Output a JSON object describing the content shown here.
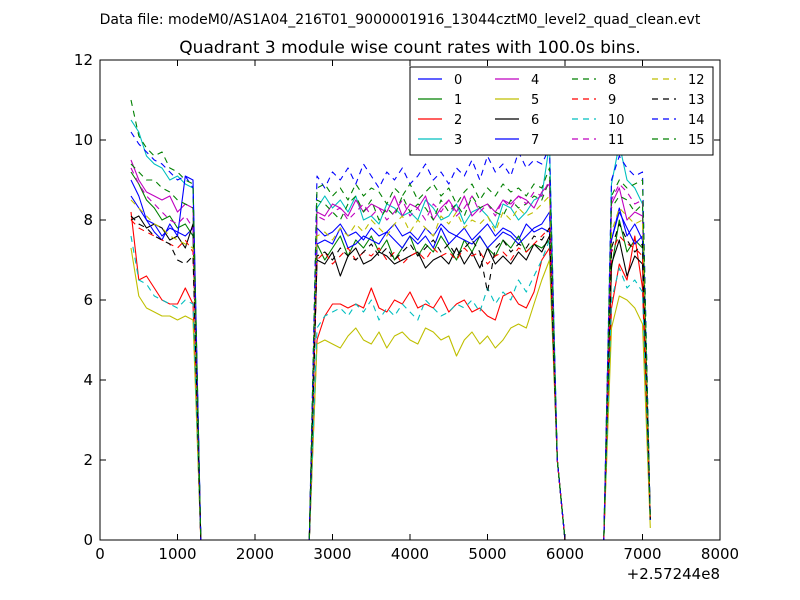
{
  "figure": {
    "suptitle": "Data file: modeM0/AS1A04_216T01_9000001916_13044cztM0_level2_quad_clean.evt",
    "x_offset_label": "+2.57244e8"
  },
  "chart_data": {
    "type": "line",
    "title": "Quadrant 3 module wise count rates with 100.0s bins.",
    "xlabel": "",
    "ylabel": "",
    "xlim": [
      0,
      8000
    ],
    "ylim": [
      0,
      12
    ],
    "x_ticks": [
      "0",
      "1000",
      "2000",
      "3000",
      "4000",
      "5000",
      "6000",
      "7000",
      "8000"
    ],
    "y_ticks": [
      "0",
      "2",
      "4",
      "6",
      "8",
      "10",
      "12"
    ],
    "legend_position": "top-right",
    "x": [
      400,
      500,
      600,
      700,
      800,
      900,
      1000,
      1100,
      1200,
      1300,
      2700,
      2800,
      2900,
      3000,
      3100,
      3200,
      3300,
      3400,
      3500,
      3600,
      3700,
      3800,
      3900,
      4000,
      4100,
      4200,
      4300,
      4400,
      4500,
      4600,
      4700,
      4800,
      4900,
      5000,
      5100,
      5200,
      5300,
      5400,
      5500,
      5600,
      5700,
      5800,
      5900,
      6000,
      6500,
      6600,
      6700,
      6800,
      6900,
      7000,
      7100
    ],
    "gap_zero_segments": [
      [
        1320,
        2700
      ],
      [
        6000,
        6500
      ]
    ],
    "series": [
      {
        "name": "0",
        "color": "#0000ff",
        "dash": "solid",
        "values": [
          9.0,
          8.6,
          8.0,
          7.9,
          7.6,
          7.8,
          7.7,
          7.6,
          7.8,
          0.0,
          0.0,
          7.8,
          7.6,
          7.7,
          7.9,
          7.6,
          7.7,
          7.5,
          7.8,
          7.6,
          7.7,
          7.9,
          7.6,
          7.7,
          7.5,
          7.8,
          7.6,
          7.9,
          7.7,
          7.6,
          7.8,
          7.5,
          7.7,
          7.9,
          7.6,
          7.8,
          7.7,
          7.5,
          7.9,
          7.7,
          7.8,
          7.7,
          2.0,
          0.0,
          0.0,
          7.5,
          8.3,
          7.6,
          7.9,
          7.5,
          0.5
        ]
      },
      {
        "name": "1",
        "color": "#008000",
        "dash": "solid",
        "values": [
          9.2,
          8.9,
          8.5,
          8.3,
          8.0,
          8.1,
          7.8,
          7.9,
          7.6,
          0.0,
          0.0,
          7.4,
          7.0,
          7.3,
          7.6,
          7.1,
          7.5,
          7.3,
          7.6,
          7.2,
          7.5,
          7.0,
          7.3,
          7.6,
          7.1,
          7.4,
          7.2,
          7.6,
          7.3,
          7.0,
          7.5,
          7.2,
          7.6,
          7.3,
          7.1,
          7.5,
          7.3,
          7.6,
          7.2,
          7.4,
          7.3,
          7.5,
          2.0,
          0.0,
          0.0,
          6.8,
          8.0,
          7.2,
          7.5,
          7.3,
          0.5
        ]
      },
      {
        "name": "2",
        "color": "#ff0000",
        "dash": "solid",
        "values": [
          8.2,
          6.5,
          6.6,
          6.3,
          6.0,
          5.9,
          5.9,
          6.3,
          5.9,
          0.0,
          0.0,
          5.0,
          5.6,
          5.9,
          5.9,
          5.8,
          5.9,
          5.8,
          6.3,
          5.8,
          5.7,
          6.0,
          5.9,
          6.2,
          5.8,
          5.9,
          5.8,
          6.1,
          5.7,
          5.9,
          6.0,
          5.7,
          5.8,
          5.6,
          5.5,
          6.1,
          6.2,
          5.9,
          5.8,
          6.2,
          7.0,
          7.3,
          2.0,
          0.0,
          0.0,
          5.8,
          6.9,
          6.5,
          7.6,
          6.3,
          0.5
        ]
      },
      {
        "name": "3",
        "color": "#00bfbf",
        "dash": "solid",
        "values": [
          10.5,
          10.2,
          9.6,
          9.4,
          9.3,
          9.0,
          9.1,
          8.9,
          8.8,
          0.0,
          0.0,
          8.3,
          8.6,
          8.3,
          8.5,
          8.2,
          8.6,
          8.0,
          8.1,
          7.9,
          8.4,
          8.3,
          8.1,
          8.2,
          8.0,
          8.5,
          8.3,
          8.0,
          8.1,
          8.4,
          7.9,
          8.2,
          8.3,
          8.1,
          7.8,
          8.4,
          8.3,
          8.0,
          8.2,
          8.5,
          8.6,
          9.9,
          2.0,
          0.0,
          0.0,
          8.9,
          9.9,
          9.0,
          8.8,
          8.4,
          0.5
        ]
      },
      {
        "name": "4",
        "color": "#bf00bf",
        "dash": "solid",
        "values": [
          9.5,
          9.0,
          8.7,
          8.6,
          8.5,
          8.6,
          8.2,
          8.4,
          8.3,
          0.0,
          0.0,
          8.2,
          8.1,
          8.4,
          8.3,
          8.1,
          8.5,
          8.2,
          8.4,
          8.3,
          8.2,
          8.6,
          8.1,
          8.4,
          8.3,
          8.6,
          8.0,
          8.3,
          8.5,
          8.2,
          8.6,
          8.1,
          8.3,
          8.4,
          8.2,
          8.5,
          8.4,
          8.6,
          8.5,
          8.3,
          8.7,
          8.9,
          2.0,
          0.0,
          0.0,
          8.4,
          8.8,
          8.0,
          8.2,
          8.1,
          0.5
        ]
      },
      {
        "name": "5",
        "color": "#bfbf00",
        "dash": "solid",
        "values": [
          7.3,
          6.1,
          5.8,
          5.7,
          5.6,
          5.6,
          5.5,
          5.6,
          5.5,
          0.0,
          0.0,
          4.9,
          5.0,
          4.9,
          4.8,
          5.1,
          5.3,
          5.0,
          4.9,
          5.2,
          4.8,
          5.1,
          5.2,
          5.0,
          4.9,
          5.3,
          5.2,
          5.0,
          5.1,
          4.6,
          5.0,
          5.2,
          4.9,
          5.1,
          4.8,
          5.0,
          5.3,
          5.4,
          5.3,
          5.9,
          6.5,
          7.0,
          2.0,
          0.0,
          0.0,
          5.3,
          6.1,
          6.0,
          5.8,
          5.4,
          0.3
        ]
      },
      {
        "name": "6",
        "color": "#000000",
        "dash": "solid",
        "values": [
          8.0,
          8.1,
          7.8,
          7.9,
          7.8,
          7.5,
          7.6,
          7.3,
          7.9,
          0.0,
          0.0,
          7.0,
          6.9,
          7.2,
          6.6,
          7.1,
          7.3,
          6.9,
          7.0,
          7.2,
          7.1,
          6.9,
          7.0,
          7.1,
          7.2,
          6.8,
          7.0,
          7.1,
          6.9,
          7.3,
          6.9,
          7.2,
          6.8,
          7.3,
          6.9,
          7.1,
          6.9,
          7.2,
          7.0,
          7.4,
          7.2,
          7.6,
          2.0,
          0.0,
          0.0,
          6.9,
          7.5,
          6.6,
          7.1,
          6.9,
          0.5
        ]
      },
      {
        "name": "7",
        "color": "#0000ff",
        "dash": "solid",
        "values": [
          8.6,
          8.3,
          8.0,
          7.7,
          7.5,
          7.9,
          7.6,
          9.1,
          9.0,
          0.0,
          0.0,
          7.4,
          7.5,
          7.4,
          7.8,
          7.3,
          7.4,
          7.6,
          7.5,
          7.4,
          7.7,
          7.5,
          7.3,
          7.6,
          7.4,
          7.6,
          7.3,
          7.8,
          7.4,
          7.6,
          7.5,
          7.4,
          7.6,
          7.3,
          7.5,
          7.7,
          7.6,
          7.4,
          7.6,
          7.8,
          7.9,
          8.2,
          2.0,
          0.0,
          0.0,
          7.5,
          8.2,
          7.8,
          7.4,
          7.6,
          0.5
        ]
      },
      {
        "name": "8",
        "color": "#008000",
        "dash": "dashed",
        "values": [
          9.4,
          9.2,
          9.0,
          9.0,
          8.8,
          8.7,
          8.5,
          8.4,
          8.3,
          0.0,
          0.0,
          8.5,
          8.4,
          8.2,
          8.0,
          8.4,
          8.6,
          8.2,
          8.5,
          8.0,
          8.3,
          8.1,
          8.6,
          8.2,
          8.4,
          8.3,
          8.0,
          8.5,
          8.2,
          8.4,
          8.1,
          8.6,
          8.3,
          8.4,
          8.2,
          8.1,
          8.5,
          8.3,
          8.4,
          8.6,
          8.5,
          9.0,
          2.0,
          0.0,
          0.0,
          8.3,
          8.6,
          8.5,
          8.2,
          8.4,
          0.5
        ]
      },
      {
        "name": "9",
        "color": "#ff0000",
        "dash": "dashed",
        "values": [
          8.0,
          7.8,
          7.7,
          7.6,
          7.5,
          7.4,
          7.3,
          7.5,
          7.2,
          0.0,
          0.0,
          7.0,
          7.2,
          6.9,
          7.1,
          7.3,
          7.0,
          7.2,
          7.1,
          7.3,
          7.0,
          7.2,
          6.9,
          7.1,
          7.2,
          7.0,
          7.3,
          7.1,
          7.2,
          7.0,
          7.3,
          7.1,
          7.2,
          6.9,
          7.1,
          7.2,
          7.0,
          7.3,
          7.2,
          7.4,
          7.6,
          7.8,
          2.0,
          0.0,
          0.0,
          7.2,
          7.6,
          7.4,
          7.3,
          7.1,
          0.5
        ]
      },
      {
        "name": "10",
        "color": "#00bfbf",
        "dash": "dashed",
        "values": [
          7.6,
          6.5,
          6.4,
          6.1,
          6.0,
          5.9,
          5.8,
          6.0,
          5.9,
          0.0,
          0.0,
          5.3,
          5.6,
          5.7,
          5.8,
          5.6,
          5.9,
          5.7,
          6.0,
          5.5,
          5.8,
          5.6,
          5.9,
          5.7,
          5.5,
          6.0,
          5.8,
          5.6,
          5.7,
          5.9,
          5.8,
          6.0,
          5.7,
          6.3,
          5.9,
          6.2,
          6.0,
          6.5,
          6.2,
          6.6,
          7.0,
          7.5,
          2.0,
          0.0,
          0.0,
          6.0,
          6.8,
          6.3,
          6.5,
          6.2,
          0.5
        ]
      },
      {
        "name": "11",
        "color": "#bf00bf",
        "dash": "dashed",
        "values": [
          9.3,
          8.9,
          8.6,
          8.4,
          8.2,
          8.0,
          7.9,
          8.1,
          7.8,
          0.0,
          0.0,
          8.1,
          8.0,
          8.2,
          8.3,
          8.0,
          8.2,
          8.4,
          8.1,
          8.3,
          8.0,
          8.2,
          8.5,
          8.1,
          8.3,
          8.0,
          8.4,
          8.2,
          8.5,
          8.1,
          8.3,
          8.6,
          8.2,
          8.4,
          8.1,
          8.5,
          8.3,
          8.6,
          8.4,
          8.7,
          8.6,
          9.0,
          2.0,
          0.0,
          0.0,
          8.5,
          8.9,
          8.7,
          8.4,
          8.5,
          0.5
        ]
      },
      {
        "name": "12",
        "color": "#bfbf00",
        "dash": "dashed",
        "values": [
          8.5,
          8.3,
          8.1,
          7.9,
          7.8,
          7.6,
          7.5,
          7.4,
          7.3,
          0.0,
          0.0,
          7.6,
          7.7,
          7.5,
          7.8,
          7.6,
          7.9,
          7.7,
          8.0,
          7.8,
          7.6,
          7.9,
          8.1,
          7.7,
          8.0,
          7.8,
          7.6,
          8.1,
          7.9,
          8.2,
          7.8,
          8.0,
          7.9,
          8.1,
          7.7,
          8.2,
          8.0,
          8.3,
          8.1,
          8.2,
          8.4,
          8.6,
          2.0,
          0.0,
          0.0,
          7.7,
          8.3,
          8.1,
          7.9,
          8.0,
          0.5
        ]
      },
      {
        "name": "13",
        "color": "#000000",
        "dash": "dashed",
        "values": [
          8.1,
          7.9,
          7.8,
          7.6,
          7.5,
          7.4,
          7.0,
          6.9,
          7.1,
          0.0,
          0.0,
          7.1,
          7.2,
          7.0,
          7.3,
          7.1,
          7.0,
          7.2,
          7.4,
          7.1,
          7.3,
          7.0,
          7.2,
          7.4,
          7.1,
          7.3,
          7.5,
          7.2,
          7.4,
          7.1,
          7.3,
          7.5,
          7.2,
          6.2,
          7.3,
          7.5,
          7.2,
          7.4,
          7.3,
          7.6,
          7.5,
          7.8,
          2.0,
          0.0,
          0.0,
          7.3,
          7.9,
          7.5,
          7.2,
          7.4,
          0.5
        ]
      },
      {
        "name": "14",
        "color": "#0000ff",
        "dash": "dashed",
        "values": [
          10.2,
          9.9,
          9.7,
          9.5,
          9.4,
          9.2,
          9.0,
          9.1,
          8.8,
          0.0,
          0.0,
          9.1,
          8.8,
          9.2,
          9.0,
          9.3,
          8.9,
          9.4,
          9.1,
          8.8,
          9.2,
          9.0,
          9.3,
          8.9,
          9.1,
          9.4,
          9.0,
          9.2,
          8.9,
          9.3,
          9.1,
          9.5,
          9.0,
          9.6,
          9.2,
          9.4,
          9.1,
          9.7,
          9.3,
          9.5,
          9.4,
          9.8,
          2.0,
          0.0,
          0.0,
          9.0,
          9.6,
          9.3,
          9.1,
          9.2,
          0.5
        ]
      },
      {
        "name": "15",
        "color": "#008000",
        "dash": "dashed",
        "values": [
          11.0,
          10.1,
          9.8,
          9.6,
          9.7,
          9.3,
          9.2,
          9.0,
          8.9,
          0.0,
          0.0,
          8.8,
          8.9,
          8.6,
          8.8,
          8.5,
          8.9,
          8.6,
          8.8,
          8.7,
          8.4,
          8.8,
          8.6,
          8.9,
          8.5,
          8.7,
          8.9,
          8.6,
          8.8,
          8.4,
          8.7,
          8.9,
          8.5,
          8.8,
          8.6,
          8.9,
          8.7,
          8.8,
          8.6,
          8.9,
          8.8,
          9.3,
          2.0,
          0.0,
          0.0,
          8.6,
          9.0,
          8.8,
          8.9,
          9.0,
          0.5
        ]
      }
    ]
  }
}
